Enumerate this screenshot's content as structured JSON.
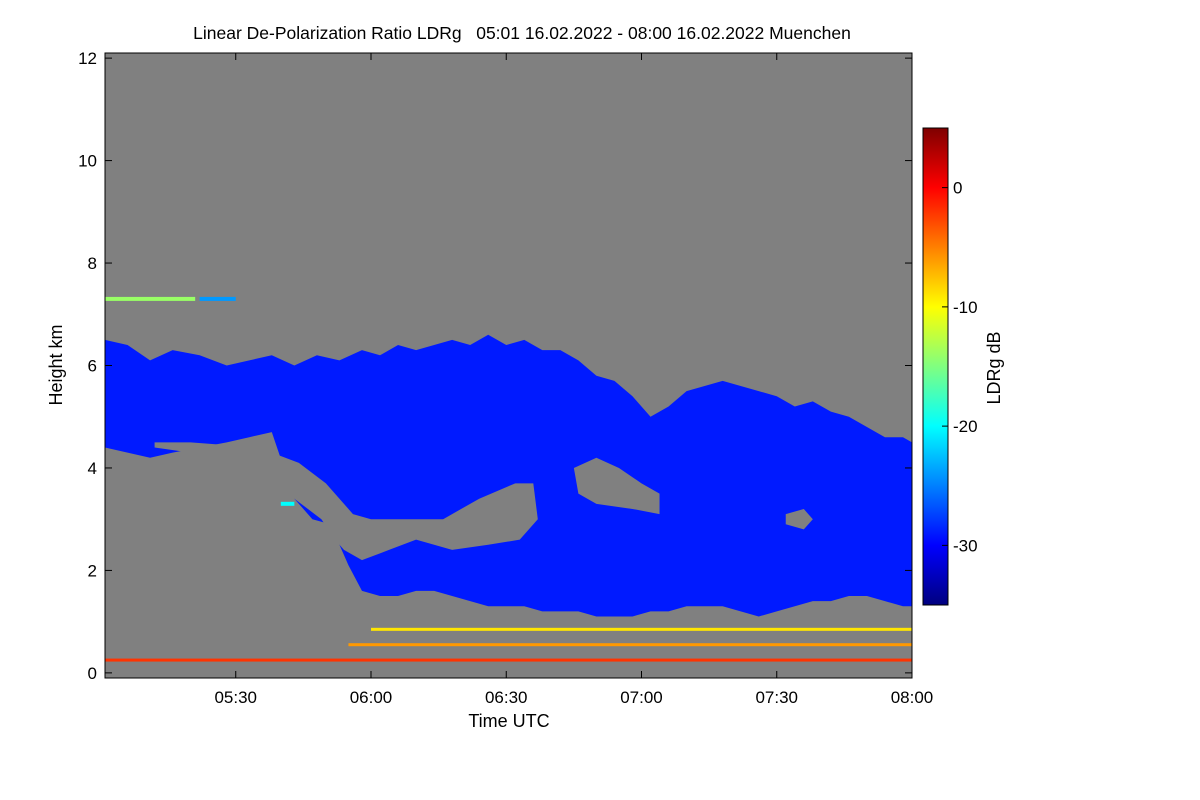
{
  "chart_data": {
    "type": "heatmap",
    "title": "Linear De-Polarization Ratio LDRg   05:01 16.02.2022 - 08:00 16.02.2022 Muenchen",
    "xlabel": "Time UTC",
    "ylabel": "Height km",
    "x_range_minutes": [
      301,
      480
    ],
    "y_range_km": [
      -0.1,
      12.1
    ],
    "x_ticks": [
      {
        "minute": 330,
        "label": "05:30"
      },
      {
        "minute": 360,
        "label": "06:00"
      },
      {
        "minute": 390,
        "label": "06:30"
      },
      {
        "minute": 420,
        "label": "07:00"
      },
      {
        "minute": 450,
        "label": "07:30"
      },
      {
        "minute": 480,
        "label": "08:00"
      }
    ],
    "y_ticks": [
      {
        "value": 0,
        "label": "0"
      },
      {
        "value": 2,
        "label": "2"
      },
      {
        "value": 4,
        "label": "4"
      },
      {
        "value": 6,
        "label": "6"
      },
      {
        "value": 8,
        "label": "8"
      },
      {
        "value": 10,
        "label": "10"
      },
      {
        "value": 12,
        "label": "12"
      }
    ],
    "colorbar": {
      "label": "LDRg dB",
      "range": [
        -35,
        5
      ],
      "ticks": [
        {
          "value": 0,
          "label": "0"
        },
        {
          "value": -10,
          "label": "-10"
        },
        {
          "value": -20,
          "label": "-20"
        },
        {
          "value": -30,
          "label": "-30"
        }
      ],
      "colors": [
        "#00007f",
        "#0000ff",
        "#0080ff",
        "#00ffff",
        "#80ff80",
        "#ffff00",
        "#ff8000",
        "#ff0000",
        "#7f0000"
      ]
    },
    "background_color": "#808080",
    "cloud_layer": {
      "ldr_db": -29,
      "top_km": [
        [
          301,
          6.5
        ],
        [
          306,
          6.4
        ],
        [
          311,
          6.1
        ],
        [
          316,
          6.3
        ],
        [
          322,
          6.2
        ],
        [
          328,
          6.0
        ],
        [
          333,
          6.1
        ],
        [
          338,
          6.2
        ],
        [
          343,
          6.0
        ],
        [
          348,
          6.2
        ],
        [
          353,
          6.1
        ],
        [
          358,
          6.3
        ],
        [
          362,
          6.2
        ],
        [
          366,
          6.4
        ],
        [
          370,
          6.3
        ],
        [
          374,
          6.4
        ],
        [
          378,
          6.5
        ],
        [
          382,
          6.4
        ],
        [
          386,
          6.6
        ],
        [
          390,
          6.4
        ],
        [
          394,
          6.5
        ],
        [
          398,
          6.3
        ],
        [
          402,
          6.3
        ],
        [
          406,
          6.1
        ],
        [
          410,
          5.8
        ],
        [
          414,
          5.7
        ],
        [
          418,
          5.4
        ],
        [
          422,
          5.0
        ],
        [
          426,
          5.2
        ],
        [
          430,
          5.5
        ],
        [
          434,
          5.6
        ],
        [
          438,
          5.7
        ],
        [
          442,
          5.6
        ],
        [
          446,
          5.5
        ],
        [
          450,
          5.4
        ],
        [
          454,
          5.2
        ],
        [
          458,
          5.3
        ],
        [
          462,
          5.1
        ],
        [
          466,
          5.0
        ],
        [
          470,
          4.8
        ],
        [
          474,
          4.6
        ],
        [
          478,
          4.6
        ],
        [
          480,
          4.5
        ]
      ],
      "base_km": [
        [
          301,
          4.4
        ],
        [
          306,
          4.3
        ],
        [
          311,
          4.2
        ],
        [
          316,
          4.3
        ],
        [
          322,
          4.4
        ],
        [
          328,
          4.5
        ],
        [
          333,
          4.6
        ],
        [
          338,
          4.7
        ],
        [
          343,
          3.4
        ],
        [
          347,
          3.0
        ],
        [
          351,
          2.9
        ],
        [
          355,
          2.1
        ],
        [
          358,
          1.6
        ],
        [
          362,
          1.5
        ],
        [
          366,
          1.5
        ],
        [
          370,
          1.6
        ],
        [
          374,
          1.6
        ],
        [
          378,
          1.5
        ],
        [
          382,
          1.4
        ],
        [
          386,
          1.3
        ],
        [
          390,
          1.3
        ],
        [
          394,
          1.3
        ],
        [
          398,
          1.2
        ],
        [
          402,
          1.2
        ],
        [
          406,
          1.2
        ],
        [
          410,
          1.1
        ],
        [
          414,
          1.1
        ],
        [
          418,
          1.1
        ],
        [
          422,
          1.2
        ],
        [
          426,
          1.2
        ],
        [
          430,
          1.3
        ],
        [
          434,
          1.3
        ],
        [
          438,
          1.3
        ],
        [
          442,
          1.2
        ],
        [
          446,
          1.1
        ],
        [
          450,
          1.2
        ],
        [
          454,
          1.3
        ],
        [
          458,
          1.4
        ],
        [
          462,
          1.4
        ],
        [
          466,
          1.5
        ],
        [
          470,
          1.5
        ],
        [
          474,
          1.4
        ],
        [
          478,
          1.3
        ],
        [
          480,
          1.3
        ]
      ]
    },
    "gap_regions_km": [
      [
        [
          312,
          4.5
        ],
        [
          320,
          4.5
        ],
        [
          335,
          4.4
        ],
        [
          344,
          4.1
        ],
        [
          350,
          3.7
        ],
        [
          356,
          3.1
        ],
        [
          360,
          3.0
        ],
        [
          364,
          3.0
        ],
        [
          368,
          3.0
        ],
        [
          376,
          3.0
        ],
        [
          384,
          3.4
        ],
        [
          392,
          3.7
        ],
        [
          396,
          3.7
        ],
        [
          397,
          3.0
        ],
        [
          393,
          2.6
        ],
        [
          386,
          2.5
        ],
        [
          378,
          2.4
        ],
        [
          370,
          2.6
        ],
        [
          364,
          2.4
        ],
        [
          358,
          2.2
        ],
        [
          354,
          2.4
        ],
        [
          352,
          2.6
        ],
        [
          349,
          3.0
        ],
        [
          343,
          3.4
        ],
        [
          335,
          4.0
        ],
        [
          320,
          4.3
        ],
        [
          312,
          4.4
        ]
      ],
      [
        [
          405,
          4.0
        ],
        [
          410,
          4.2
        ],
        [
          415,
          4.0
        ],
        [
          420,
          3.7
        ],
        [
          424,
          3.5
        ],
        [
          424,
          3.1
        ],
        [
          418,
          3.2
        ],
        [
          410,
          3.3
        ],
        [
          406,
          3.5
        ]
      ],
      [
        [
          452,
          3.1
        ],
        [
          456,
          3.2
        ],
        [
          458,
          3.0
        ],
        [
          456,
          2.8
        ],
        [
          452,
          2.9
        ]
      ]
    ],
    "isolated_echo_patches": [
      {
        "time_start": 301,
        "time_end": 321,
        "height_km": 7.3,
        "ldr_db": -14
      },
      {
        "time_start": 322,
        "time_end": 330,
        "height_km": 7.3,
        "ldr_db": -24
      },
      {
        "time_start": 340,
        "time_end": 343,
        "height_km": 3.3,
        "ldr_db": -20
      }
    ],
    "near_ground_bands": [
      {
        "height_km": 0.25,
        "time_start": 301,
        "time_end": 480,
        "ldr_db": -2
      },
      {
        "height_km": 0.55,
        "time_start": 355,
        "time_end": 480,
        "ldr_db": -6
      },
      {
        "height_km": 0.85,
        "time_start": 360,
        "time_end": 480,
        "ldr_db": -9
      }
    ]
  }
}
